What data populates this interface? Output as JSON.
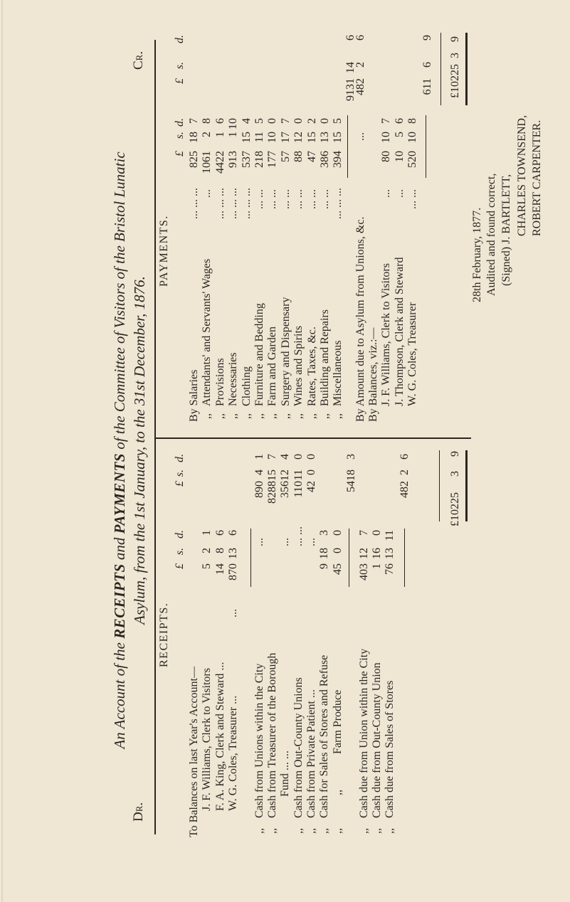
{
  "title": {
    "line1_a": "An Account of the",
    "line1_b": "RECEIPTS",
    "line1_c": "and",
    "line1_d": "PAYMENTS",
    "line1_e": "of the Committee of Visitors of the Bristol Lunatic",
    "line2": "Asylum, from the 1st January, to the 31st December, 1876.",
    "dr": "Dr.",
    "cr": "Cr."
  },
  "currency_headers": {
    "pounds": "£",
    "shillings": "s.",
    "pence": "d."
  },
  "receipts": {
    "heading": "RECEIPTS.",
    "ditto": ",,",
    "rows": [
      {
        "label": "To Balances on last Year's Account—"
      },
      {
        "label": "J. F. Williams, Clerk to Visitors",
        "sub": [
          "5",
          "2",
          "1"
        ]
      },
      {
        "label": "F. A. King, Clerk and Steward ...",
        "sub": [
          "14",
          "8",
          "6"
        ]
      },
      {
        "label": "W. G. Coles, Treasurer ...",
        "leader": "...",
        "sub": [
          "870",
          "13",
          "6"
        ]
      },
      {
        "label": "Cash from Unions within the City",
        "ditto": true,
        "leader": "...",
        "total": [
          "890",
          "4",
          "1"
        ]
      },
      {
        "label": "Cash from Treasurer of the Borough",
        "ditto": true,
        "total": [
          "8288",
          "15",
          "7"
        ]
      },
      {
        "label": "Fund ... ...",
        "leader": "...",
        "total": [
          "356",
          "12",
          "4"
        ]
      },
      {
        "label": "Cash from Out-County Unions",
        "ditto": true,
        "leader": "... ...",
        "total": [
          "110",
          "11",
          "0"
        ]
      },
      {
        "label": "Cash from Private Patient ...",
        "ditto": true,
        "leader": "...",
        "total": [
          "42",
          "0",
          "0"
        ]
      },
      {
        "label": "Cash for Sales of Stores and Refuse",
        "ditto": true,
        "sub": [
          "9",
          "18",
          "3"
        ]
      },
      {
        "label": "Farm Produce",
        "ditto": true,
        "ditto2": true,
        "sub": [
          "45",
          "0",
          "0"
        ]
      },
      {
        "label": "",
        "total": [
          "54",
          "18",
          "3"
        ]
      },
      {
        "label": "Cash due from Union within the City",
        "ditto": true,
        "sub": [
          "403",
          "12",
          "7"
        ]
      },
      {
        "label": "Cash due from Out-County Union",
        "ditto": true,
        "sub": [
          "1",
          "16",
          "0"
        ]
      },
      {
        "label": "Cash due from Sales of Stores",
        "ditto": true,
        "sub": [
          "76",
          "13",
          "11"
        ]
      },
      {
        "label": "",
        "total": [
          "482",
          "2",
          "6"
        ]
      }
    ],
    "grand_total": [
      "£10225",
      "3",
      "9"
    ]
  },
  "payments": {
    "heading": "PAYMENTS.",
    "ditto": ",,",
    "rows": [
      {
        "label": "By Salaries",
        "leader": "... ... ...",
        "sub": [
          "825",
          "18",
          "7"
        ]
      },
      {
        "label": "Attendants' and Servants' Wages",
        "ditto": true,
        "leader": "...",
        "sub": [
          "1061",
          "2",
          "8"
        ]
      },
      {
        "label": "Provisions",
        "ditto": true,
        "leader": "... ... ...",
        "sub": [
          "4422",
          "1",
          "6"
        ]
      },
      {
        "label": "Necessaries",
        "ditto": true,
        "leader": "... ... ...",
        "sub": [
          "913",
          "1",
          "10"
        ]
      },
      {
        "label": "Clothing",
        "ditto": true,
        "leader": "... ... ...",
        "sub": [
          "537",
          "15",
          "4"
        ]
      },
      {
        "label": "Furniture and Bedding",
        "ditto": true,
        "leader": "... ...",
        "sub": [
          "218",
          "11",
          "5"
        ]
      },
      {
        "label": "Farm and Garden",
        "ditto": true,
        "leader": "... ...",
        "sub": [
          "177",
          "10",
          "0"
        ]
      },
      {
        "label": "Surgery and Dispensary",
        "ditto": true,
        "leader": "... ...",
        "sub": [
          "57",
          "17",
          "7"
        ]
      },
      {
        "label": "Wines and Spirits",
        "ditto": true,
        "leader": "... ...",
        "sub": [
          "88",
          "12",
          "0"
        ]
      },
      {
        "label": "Rates, Taxes, &c.",
        "ditto": true,
        "leader": "... ...",
        "sub": [
          "47",
          "15",
          "2"
        ]
      },
      {
        "label": "Building and Repairs",
        "ditto": true,
        "leader": "... ...",
        "sub": [
          "386",
          "13",
          "0"
        ]
      },
      {
        "label": "Miscellaneous",
        "ditto": true,
        "leader": "... ... ...",
        "sub": [
          "394",
          "15",
          "5"
        ]
      },
      {
        "label": "",
        "total": [
          "9131",
          "14",
          "6"
        ]
      },
      {
        "label": "By Amount due to Asylum from Unions, &c.",
        "leader": "...",
        "total": [
          "482",
          "2",
          "6"
        ]
      },
      {
        "label": "By Balances, viz.:—"
      },
      {
        "label": "J. F. Williams, Clerk to Visitors",
        "leader": "...",
        "sub": [
          "80",
          "10",
          "7"
        ]
      },
      {
        "label": "J. Thompson, Clerk and Steward",
        "leader": "...",
        "sub": [
          "10",
          "5",
          "6"
        ]
      },
      {
        "label": "W. G. Coles, Treasurer",
        "leader": "... ...",
        "sub": [
          "520",
          "10",
          "8"
        ]
      },
      {
        "label": "",
        "total": [
          "611",
          "6",
          "9"
        ]
      }
    ],
    "grand_total": [
      "£10225",
      "3",
      "9"
    ]
  },
  "footer": {
    "date": "28th February, 1877.",
    "audited": "Audited and found correct,",
    "signed_1": "(Signed) J. BARTLETT,",
    "signed_2": "CHARLES TOWNSEND,",
    "signed_3": "ROBERT CARPENTER."
  }
}
